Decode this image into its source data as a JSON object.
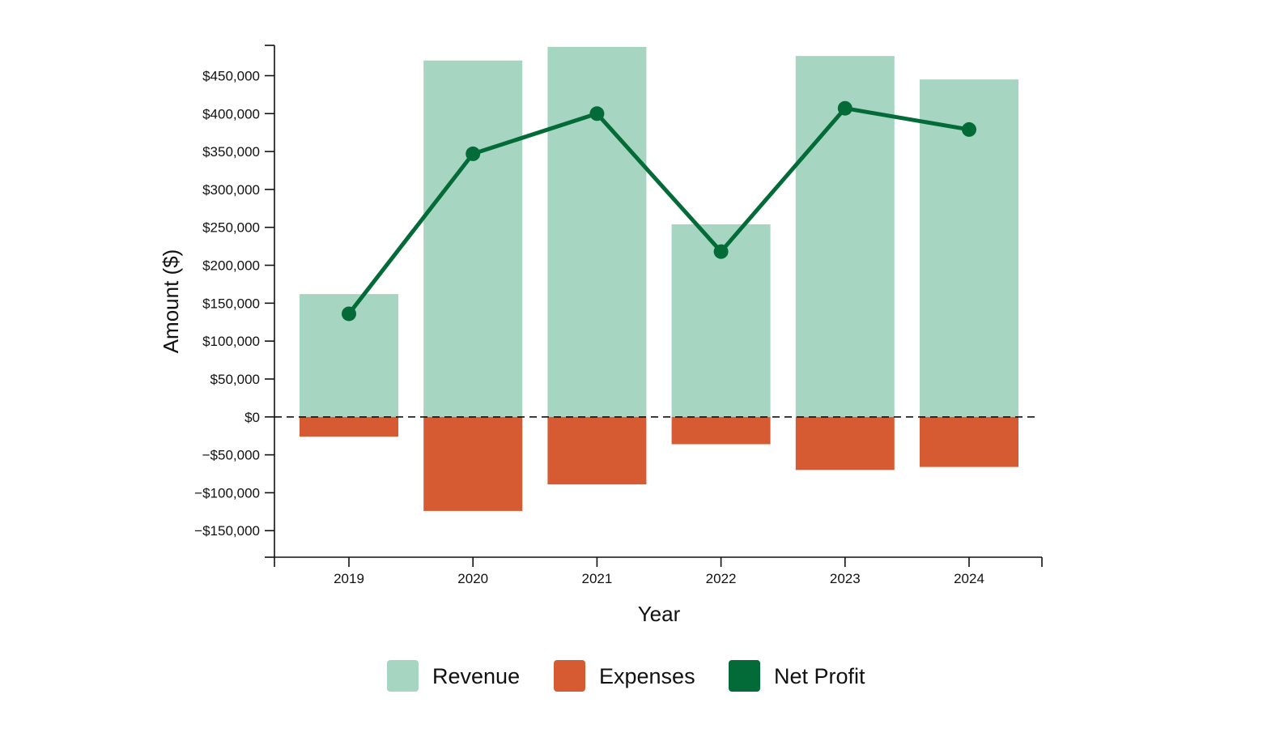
{
  "chart_data": {
    "type": "bar",
    "title": "",
    "xlabel": "Year",
    "ylabel": "Amount ($)",
    "categories": [
      "2019",
      "2020",
      "2021",
      "2022",
      "2023",
      "2024"
    ],
    "ylim": [
      -185000,
      490000
    ],
    "yticks": [
      -150000,
      -100000,
      -50000,
      0,
      50000,
      100000,
      150000,
      200000,
      250000,
      300000,
      350000,
      400000,
      450000
    ],
    "ytick_labels": [
      "−$150,000",
      "−$100,000",
      "−$50,000",
      "$0",
      "$50,000",
      "$100,000",
      "$150,000",
      "$200,000",
      "$250,000",
      "$300,000",
      "$350,000",
      "$400,000",
      "$450,000"
    ],
    "grid": false,
    "zero_line": "dashed",
    "legend_position": "bottom-center",
    "series": [
      {
        "name": "Revenue",
        "kind": "bar",
        "color": "#a6d5c1",
        "values": [
          162000,
          470000,
          488000,
          254000,
          476000,
          445000
        ]
      },
      {
        "name": "Expenses",
        "kind": "bar",
        "color": "#d65b33",
        "values": [
          -26000,
          -124000,
          -89000,
          -36000,
          -70000,
          -66000
        ]
      },
      {
        "name": "Net Profit",
        "kind": "line",
        "color": "#036b38",
        "values": [
          136000,
          347000,
          400000,
          218000,
          407000,
          379000
        ]
      }
    ]
  }
}
